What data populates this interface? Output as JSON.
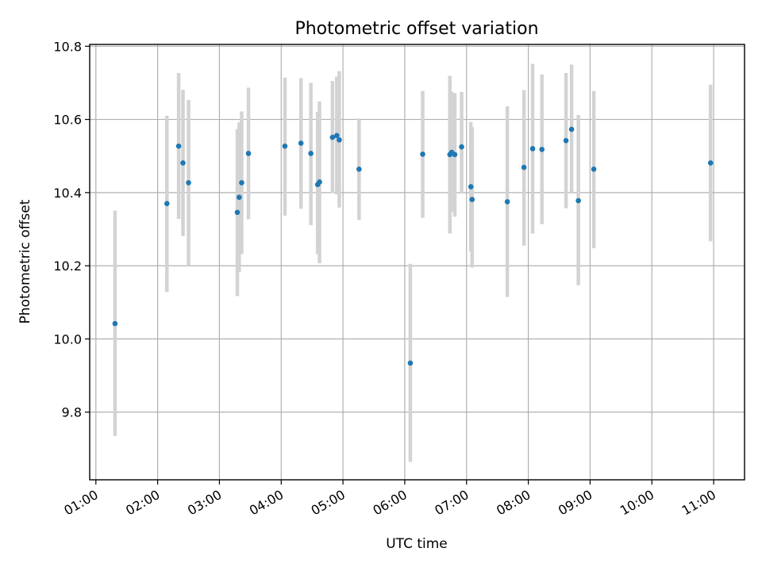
{
  "chart_data": {
    "type": "scatter",
    "title": "Photometric offset variation",
    "xlabel": "UTC time",
    "ylabel": "Photometric offset",
    "x_unit": "hours",
    "xlim": [
      0.9,
      11.5
    ],
    "ylim": [
      9.615,
      10.805
    ],
    "x_ticks": [
      {
        "value": 1,
        "label": "01:00"
      },
      {
        "value": 2,
        "label": "02:00"
      },
      {
        "value": 3,
        "label": "03:00"
      },
      {
        "value": 4,
        "label": "04:00"
      },
      {
        "value": 5,
        "label": "05:00"
      },
      {
        "value": 6,
        "label": "06:00"
      },
      {
        "value": 7,
        "label": "07:00"
      },
      {
        "value": 8,
        "label": "08:00"
      },
      {
        "value": 9,
        "label": "09:00"
      },
      {
        "value": 10,
        "label": "10:00"
      },
      {
        "value": 11,
        "label": "11:00"
      }
    ],
    "y_ticks": [
      {
        "value": 9.8,
        "label": "9.8"
      },
      {
        "value": 10.0,
        "label": "10.0"
      },
      {
        "value": 10.2,
        "label": "10.2"
      },
      {
        "value": 10.4,
        "label": "10.4"
      },
      {
        "value": 10.6,
        "label": "10.6"
      },
      {
        "value": 10.8,
        "label": "10.8"
      }
    ],
    "grid": true,
    "colors": {
      "point": "#1f77b4",
      "errorbar": "#d3d3d3",
      "grid": "#b0b0b0"
    },
    "points": [
      {
        "x": 1.31,
        "y": 10.042,
        "low": 9.735,
        "high": 10.351
      },
      {
        "x": 2.15,
        "y": 10.37,
        "low": 10.128,
        "high": 10.61
      },
      {
        "x": 2.34,
        "y": 10.527,
        "low": 10.328,
        "high": 10.727
      },
      {
        "x": 2.41,
        "y": 10.481,
        "low": 10.281,
        "high": 10.681
      },
      {
        "x": 2.5,
        "y": 10.427,
        "low": 10.2,
        "high": 10.653
      },
      {
        "x": 3.29,
        "y": 10.346,
        "low": 10.117,
        "high": 10.573
      },
      {
        "x": 3.32,
        "y": 10.387,
        "low": 10.182,
        "high": 10.592
      },
      {
        "x": 3.36,
        "y": 10.427,
        "low": 10.232,
        "high": 10.622
      },
      {
        "x": 3.47,
        "y": 10.507,
        "low": 10.327,
        "high": 10.687
      },
      {
        "x": 4.06,
        "y": 10.527,
        "low": 10.337,
        "high": 10.714
      },
      {
        "x": 4.32,
        "y": 10.535,
        "low": 10.356,
        "high": 10.713
      },
      {
        "x": 4.48,
        "y": 10.507,
        "low": 10.311,
        "high": 10.7
      },
      {
        "x": 4.59,
        "y": 10.422,
        "low": 10.232,
        "high": 10.621
      },
      {
        "x": 4.62,
        "y": 10.429,
        "low": 10.207,
        "high": 10.649
      },
      {
        "x": 4.83,
        "y": 10.551,
        "low": 10.399,
        "high": 10.705
      },
      {
        "x": 4.9,
        "y": 10.556,
        "low": 10.395,
        "high": 10.717
      },
      {
        "x": 4.94,
        "y": 10.544,
        "low": 10.359,
        "high": 10.732
      },
      {
        "x": 5.26,
        "y": 10.464,
        "low": 10.325,
        "high": 10.603
      },
      {
        "x": 6.09,
        "y": 9.934,
        "low": 9.664,
        "high": 10.205
      },
      {
        "x": 6.29,
        "y": 10.505,
        "low": 10.331,
        "high": 10.678
      },
      {
        "x": 6.73,
        "y": 10.504,
        "low": 10.288,
        "high": 10.719
      },
      {
        "x": 6.76,
        "y": 10.51,
        "low": 10.346,
        "high": 10.676
      },
      {
        "x": 6.81,
        "y": 10.504,
        "low": 10.334,
        "high": 10.672
      },
      {
        "x": 6.92,
        "y": 10.525,
        "low": 10.397,
        "high": 10.675
      },
      {
        "x": 7.07,
        "y": 10.416,
        "low": 10.239,
        "high": 10.593
      },
      {
        "x": 7.09,
        "y": 10.381,
        "low": 10.195,
        "high": 10.579
      },
      {
        "x": 7.66,
        "y": 10.375,
        "low": 10.115,
        "high": 10.636
      },
      {
        "x": 7.93,
        "y": 10.469,
        "low": 10.255,
        "high": 10.68
      },
      {
        "x": 8.07,
        "y": 10.52,
        "low": 10.288,
        "high": 10.752
      },
      {
        "x": 8.22,
        "y": 10.518,
        "low": 10.314,
        "high": 10.723
      },
      {
        "x": 8.61,
        "y": 10.542,
        "low": 10.357,
        "high": 10.727
      },
      {
        "x": 8.7,
        "y": 10.573,
        "low": 10.397,
        "high": 10.75
      },
      {
        "x": 8.81,
        "y": 10.378,
        "low": 10.147,
        "high": 10.612
      },
      {
        "x": 9.06,
        "y": 10.464,
        "low": 10.248,
        "high": 10.678
      },
      {
        "x": 10.95,
        "y": 10.481,
        "low": 10.267,
        "high": 10.695
      }
    ]
  }
}
